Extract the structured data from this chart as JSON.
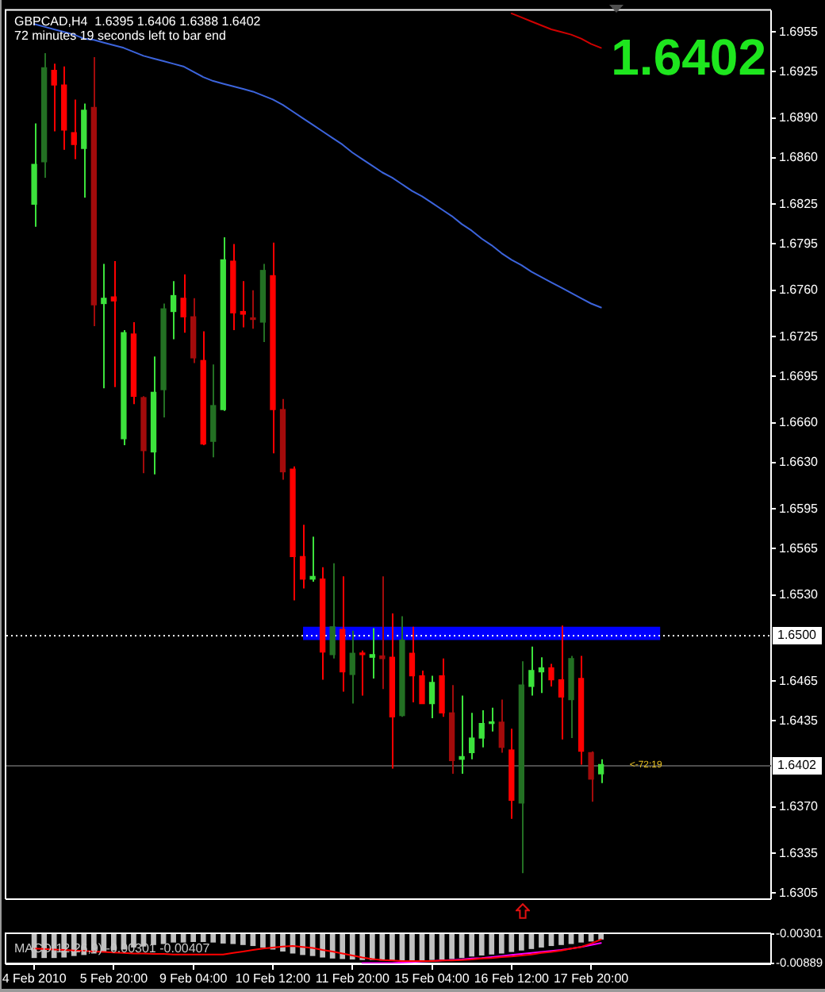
{
  "chart_data": [
    {
      "type": "candlestick",
      "title": "GBPCAD,H4  1.6395 1.6406 1.6388 1.6402",
      "subtitle": "72 minutes 19 seconds left to bar end",
      "categories": [
        null,
        null,
        null,
        null,
        null,
        null,
        null,
        null,
        null,
        null,
        null,
        null,
        null,
        null,
        null,
        null,
        null,
        null,
        null,
        null,
        null,
        null,
        null,
        null,
        null,
        null,
        null,
        null,
        null,
        null,
        null,
        null,
        null,
        null,
        null,
        null,
        null,
        null,
        null,
        null,
        null,
        null,
        null,
        null,
        null,
        null,
        null,
        null,
        null,
        null,
        null,
        null,
        null,
        null,
        null,
        null,
        null,
        null
      ],
      "ohlc": [
        [
          1.6825,
          1.6886,
          1.6808,
          1.6855
        ],
        [
          1.6857,
          1.6939,
          1.6845,
          1.6928
        ],
        [
          1.6926,
          1.6931,
          1.688,
          1.6915
        ],
        [
          1.6915,
          1.6929,
          1.6866,
          1.6881
        ],
        [
          1.6879,
          1.6904,
          1.6859,
          1.687
        ],
        [
          1.6867,
          1.6901,
          1.683,
          1.6896
        ],
        [
          1.6898,
          1.6936,
          1.6733,
          1.6749
        ],
        [
          1.675,
          1.678,
          1.6686,
          1.6754
        ],
        [
          1.6755,
          1.6782,
          1.6687,
          1.6752
        ],
        [
          1.6648,
          1.673,
          1.6643,
          1.6728
        ],
        [
          1.6727,
          1.6736,
          1.6674,
          1.668
        ],
        [
          1.6679,
          1.668,
          1.6622,
          1.6639
        ],
        [
          1.6638,
          1.671,
          1.6621,
          1.6683
        ],
        [
          1.6685,
          1.675,
          1.6664,
          1.6746
        ],
        [
          1.6744,
          1.6767,
          1.6723,
          1.6756
        ],
        [
          1.6754,
          1.6772,
          1.6728,
          1.674
        ],
        [
          1.674,
          1.6754,
          1.6705,
          1.6709
        ],
        [
          1.6707,
          1.6729,
          1.6643,
          1.6644
        ],
        [
          1.6646,
          1.6704,
          1.6634,
          1.6673
        ],
        [
          1.667,
          1.68,
          1.6669,
          1.6783
        ],
        [
          1.6782,
          1.6795,
          1.673,
          1.6743
        ],
        [
          1.6744,
          1.6767,
          1.6732,
          1.6742
        ],
        [
          1.6739,
          1.676,
          1.6731,
          1.6738
        ],
        [
          1.6736,
          1.678,
          1.6721,
          1.6775
        ],
        [
          1.6771,
          1.6796,
          1.6637,
          1.667
        ],
        [
          1.667,
          1.6678,
          1.6617,
          1.6623
        ],
        [
          1.6625,
          1.6627,
          1.6526,
          1.6559
        ],
        [
          1.6559,
          1.6583,
          1.6535,
          1.6542
        ],
        [
          1.6542,
          1.6574,
          1.654,
          1.6544
        ],
        [
          1.6542,
          1.6551,
          1.6466,
          1.6487
        ],
        [
          1.6485,
          1.6554,
          1.6482,
          1.6506
        ],
        [
          1.6504,
          1.6544,
          1.6457,
          1.6472
        ],
        [
          1.647,
          1.6503,
          1.6448,
          1.6486
        ],
        [
          1.6486,
          1.6488,
          1.6454,
          1.6485
        ],
        [
          1.6483,
          1.6505,
          1.6467,
          1.6485
        ],
        [
          1.6484,
          1.6544,
          1.6459,
          1.6482
        ],
        [
          1.6483,
          1.6516,
          1.6399,
          1.6438
        ],
        [
          1.6439,
          1.6514,
          1.6438,
          1.6496
        ],
        [
          1.6486,
          1.6506,
          1.6449,
          1.6469
        ],
        [
          1.6469,
          1.6473,
          1.6448,
          1.6448
        ],
        [
          1.6448,
          1.6469,
          1.6437,
          1.6464
        ],
        [
          1.6469,
          1.6482,
          1.6438,
          1.6441
        ],
        [
          1.6441,
          1.6462,
          1.6395,
          1.6405
        ],
        [
          1.6406,
          1.6454,
          1.6395,
          1.6408
        ],
        [
          1.6411,
          1.6441,
          1.6406,
          1.6422
        ],
        [
          1.6422,
          1.6443,
          1.6415,
          1.6433
        ],
        [
          1.6433,
          1.6445,
          1.6427,
          1.6434
        ],
        [
          1.6434,
          1.6451,
          1.6411,
          1.6415
        ],
        [
          1.6413,
          1.6429,
          1.6361,
          1.6375
        ],
        [
          1.6373,
          1.648,
          1.632,
          1.6462
        ],
        [
          1.6461,
          1.6491,
          1.6454,
          1.6473
        ],
        [
          1.6472,
          1.6483,
          1.6456,
          1.6475
        ],
        [
          1.6475,
          1.6478,
          1.6461,
          1.6466
        ],
        [
          1.6466,
          1.6507,
          1.6421,
          1.6453
        ],
        [
          1.6451,
          1.6484,
          1.6422,
          1.6482
        ],
        [
          1.6467,
          1.6484,
          1.6402,
          1.6412
        ],
        [
          1.6411,
          1.6412,
          1.6374,
          1.6391
        ],
        [
          1.6395,
          1.6406,
          1.6388,
          1.6402
        ]
      ],
      "colors": [
        "#3ce23c",
        "#237023",
        "#ff0000",
        "#ff0000",
        "#ff0000",
        "#3ce23c",
        "#a30b0b",
        "#3ce23c",
        "#ff0000",
        "#3ce23c",
        "#ff0000",
        "#a30b0b",
        "#3ce23c",
        "#237023",
        "#3ce23c",
        "#ff0000",
        "#a30b0b",
        "#ff0000",
        "#237023",
        "#3ce23c",
        "#ff0000",
        "#ff0000",
        "#a30b0b",
        "#237023",
        "#ff0000",
        "#a30b0b",
        "#ff0000",
        "#ff0000",
        "#3ce23c",
        "#ff0000",
        "#237023",
        "#ff0000",
        "#237023",
        "#ff0000",
        "#3ce23c",
        "#a30b0b",
        "#ff0000",
        "#237023",
        "#ff0000",
        "#ff0000",
        "#3ce23c",
        "#ff0000",
        "#a30b0b",
        "#3ce23c",
        "#3ce23c",
        "#3ce23c",
        "#3ce23c",
        "#a30b0b",
        "#ff0000",
        "#237023",
        "#3ce23c",
        "#3ce23c",
        "#ff0000",
        "#ff0000",
        "#237023",
        "#ff0000",
        "#a30b0b",
        "#3ce23c"
      ],
      "series": [
        {
          "type": "line",
          "color": "#3c64dc",
          "values": [
            1.6961,
            1.6959,
            1.6957,
            1.6955,
            1.6953,
            1.695,
            1.6949,
            1.6947,
            1.6945,
            1.6943,
            1.694,
            1.6937,
            1.6935,
            1.6933,
            1.6931,
            1.6929,
            1.6925,
            1.6921,
            1.6918,
            1.6916,
            1.6914,
            1.6912,
            1.691,
            1.6907,
            1.6904,
            1.69,
            1.6895,
            1.689,
            1.6885,
            1.688,
            1.6875,
            1.687,
            1.6864,
            1.6859,
            1.6854,
            1.6849,
            1.6845,
            1.684,
            1.6835,
            1.6831,
            1.6826,
            1.6821,
            1.6816,
            1.681,
            1.6805,
            1.6799,
            1.6794,
            1.6788,
            1.6783,
            1.6779,
            1.6774,
            1.677,
            1.6766,
            1.6762,
            1.6758,
            1.6754,
            1.675,
            1.6747
          ]
        },
        {
          "type": "line",
          "color": "#d00000",
          "values": [
            null,
            null,
            null,
            null,
            null,
            null,
            null,
            null,
            null,
            null,
            null,
            null,
            null,
            null,
            null,
            null,
            null,
            null,
            null,
            null,
            null,
            null,
            null,
            null,
            null,
            null,
            null,
            null,
            null,
            null,
            null,
            null,
            null,
            null,
            null,
            null,
            null,
            null,
            null,
            null,
            null,
            null,
            null,
            null,
            null,
            null,
            null,
            null,
            1.6969,
            1.6966,
            1.6963,
            1.696,
            1.6957,
            1.6955,
            1.6953,
            1.695,
            1.6946,
            1.6943
          ]
        }
      ],
      "ylim": [
        1.6301,
        1.6971
      ],
      "yticks": [
        1.6955,
        1.6925,
        {
          "value": 1.689,
          "label": "1.6890"
        },
        {
          "value": 1.686,
          "label": "1.6860"
        },
        1.6825,
        1.6795,
        {
          "value": 1.676,
          "label": "1.6760"
        },
        1.6725,
        1.6695,
        {
          "value": 1.666,
          "label": "1.6660"
        },
        {
          "value": 1.663,
          "label": "1.6630"
        },
        1.6595,
        1.6565,
        {
          "value": 1.653,
          "label": "1.6530"
        },
        1.6465,
        1.6435,
        {
          "value": 1.637,
          "label": "1.6370"
        },
        1.6335,
        1.6305
      ],
      "ref_lines": [
        {
          "axis": "y",
          "value": 1.65,
          "label": "1.6500",
          "color": "#ffffff",
          "line_style": "dotted"
        },
        {
          "axis": "y",
          "value": 1.6402,
          "label": "1.6402",
          "color": "#4d4d4d"
        }
      ],
      "bands": [
        {
          "axis": "y",
          "from": 1.6496,
          "to": 1.6506,
          "color": "#0000ff"
        }
      ],
      "annotations": [
        "1.6402",
        {
          "text": "<-72:19",
          "y": 1.6402
        }
      ],
      "grid": false,
      "legend": false,
      "tick_labels": "y"
    },
    {
      "type": "bar",
      "title": "MACD(12,26,9) -0.00301 -0.00407",
      "categories": [
        "4 Feb 2010",
        null,
        null,
        null,
        null,
        null,
        null,
        null,
        "5 Feb 20:00",
        null,
        null,
        null,
        null,
        null,
        null,
        null,
        "9 Feb 04:00",
        null,
        null,
        null,
        null,
        null,
        null,
        null,
        "10 Feb 12:00",
        null,
        null,
        null,
        null,
        null,
        null,
        null,
        "11 Feb 20:00",
        null,
        null,
        null,
        null,
        null,
        null,
        null,
        "15 Feb 04:00",
        null,
        null,
        null,
        null,
        null,
        null,
        null,
        "16 Feb 12:00",
        null,
        null,
        null,
        null,
        null,
        null,
        null,
        "17 Feb 20:00",
        null
      ],
      "series": [
        {
          "color": "#c0c0c0",
          "values": [
            -0.0077,
            -0.0077,
            -0.0077,
            -0.0076,
            -0.0073,
            -0.0071,
            -0.0068,
            -0.0064,
            -0.0062,
            -0.006,
            -0.0056,
            -0.0054,
            -0.0051,
            -0.0049,
            -0.0046,
            -0.0046,
            -0.0045,
            -0.0045,
            -0.0046,
            -0.0048,
            -0.0049,
            -0.0051,
            -0.0053,
            -0.0056,
            -0.006,
            -0.0064,
            -0.0068,
            -0.0071,
            -0.0073,
            -0.0076,
            -0.0078,
            -0.0079,
            -0.008,
            -0.0081,
            -0.0081,
            -0.0082,
            -0.0082,
            -0.0082,
            -0.0082,
            -0.0082,
            -0.0081,
            -0.008,
            -0.0079,
            -0.0077,
            -0.0074,
            -0.0072,
            -0.007,
            -0.0068,
            -0.0065,
            -0.0062,
            -0.0059,
            -0.0056,
            -0.0053,
            -0.0051,
            -0.0049,
            -0.0046,
            -0.0044,
            -0.004
          ]
        },
        {
          "type": "line",
          "color": "#ff0000",
          "values": [
            -0.0059,
            -0.006,
            -0.0061,
            -0.0062,
            -0.0063,
            -0.0064,
            -0.0065,
            -0.0066,
            -0.0067,
            -0.0068,
            -0.0069,
            -0.0069,
            -0.007,
            -0.007,
            -0.0071,
            -0.0071,
            -0.0071,
            -0.0071,
            -0.0071,
            -0.0071,
            -0.0068,
            -0.0065,
            -0.0062,
            -0.0059,
            -0.0057,
            -0.0055,
            -0.0054,
            -0.0056,
            -0.0058,
            -0.0062,
            -0.0065,
            -0.0069,
            -0.0073,
            -0.0077,
            -0.008,
            -0.0082,
            -0.0083,
            -0.0084,
            -0.0084,
            -0.0084,
            -0.0084,
            -0.0083,
            -0.0083,
            -0.0082,
            -0.0081,
            -0.0079,
            -0.0078,
            -0.0076,
            -0.0075,
            -0.0073,
            -0.0071,
            -0.0068,
            -0.0066,
            -0.0063,
            -0.0059,
            -0.0056,
            -0.0049,
            -0.0041
          ]
        },
        {
          "type": "line",
          "color": "#ff00ff",
          "values": [
            null,
            null,
            null,
            null,
            null,
            null,
            null,
            null,
            null,
            null,
            null,
            null,
            null,
            null,
            null,
            null,
            null,
            null,
            null,
            null,
            null,
            null,
            null,
            null,
            null,
            null,
            null,
            null,
            null,
            null,
            null,
            null,
            null,
            -0.0088,
            -0.0088,
            -0.0088,
            -0.0088,
            -0.0087,
            -0.0086,
            -0.0085,
            -0.0084,
            -0.0083,
            -0.0082,
            -0.0081,
            -0.0079,
            -0.0078,
            -0.0076,
            -0.0074,
            -0.0072,
            -0.007,
            -0.0068,
            -0.0066,
            -0.0064,
            -0.0062,
            -0.0059,
            -0.0056,
            -0.0052,
            -0.0048
          ]
        }
      ],
      "ylim": [
        -0.00889,
        -0.00301
      ],
      "yticks": [
        -0.00301,
        -0.00889
      ],
      "grid": false,
      "legend": false
    }
  ]
}
